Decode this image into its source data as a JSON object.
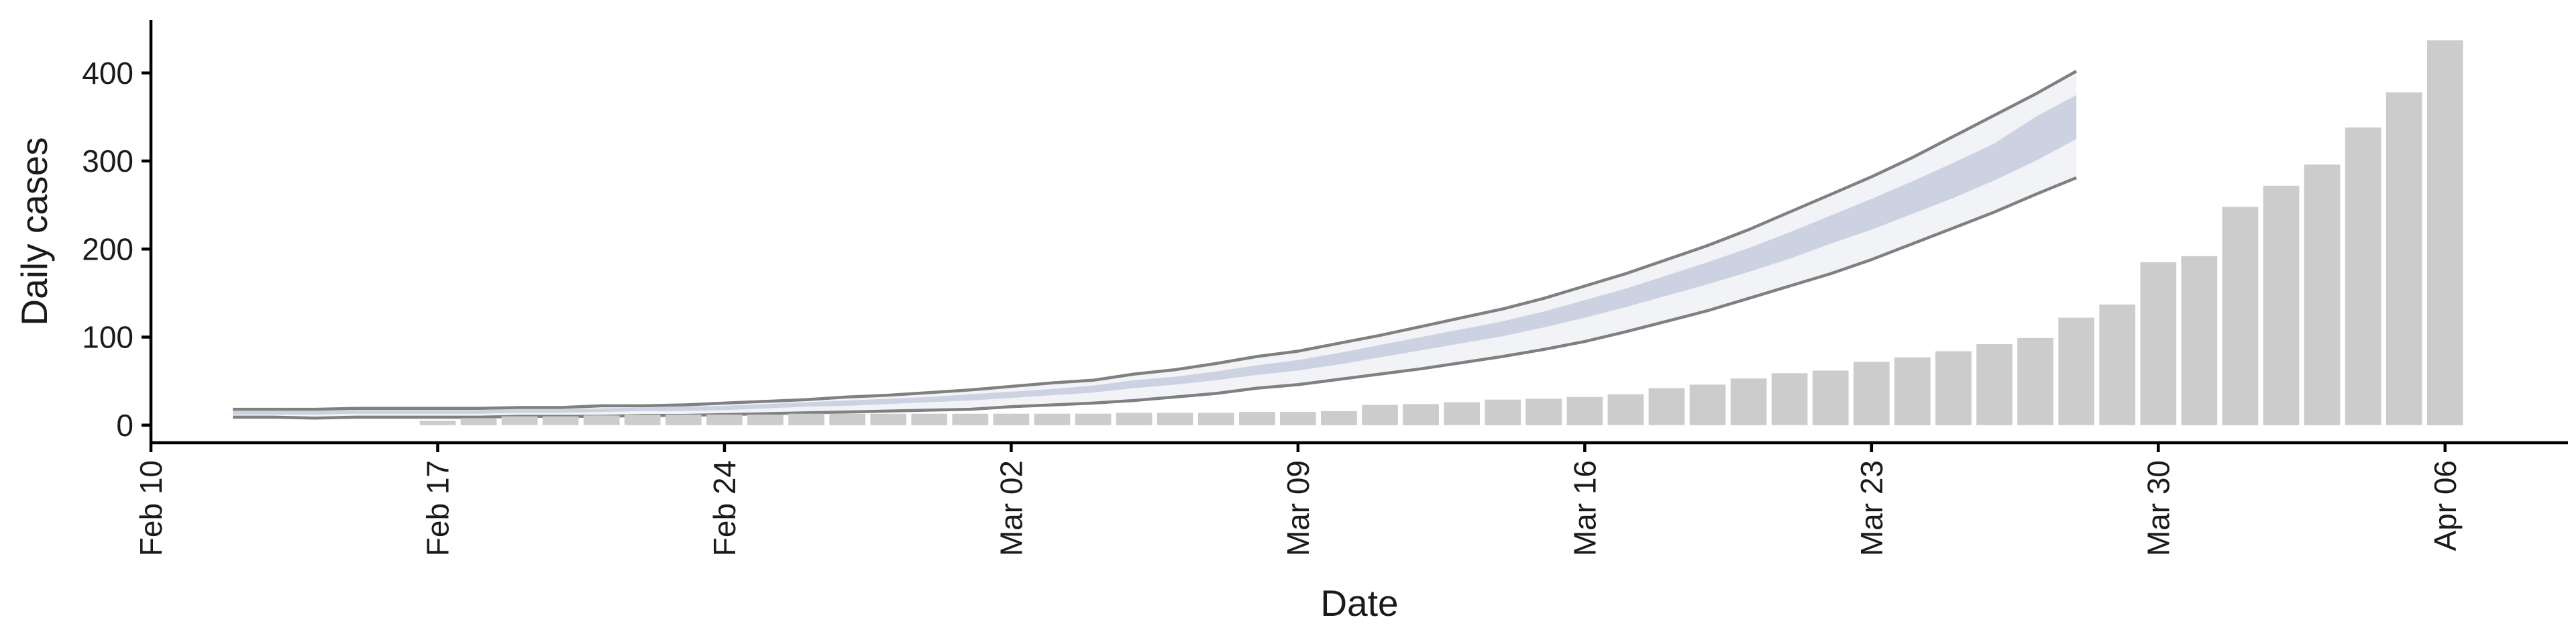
{
  "chart_data": {
    "type": "bar",
    "title": "",
    "xlabel": "Date",
    "ylabel": "Daily cases",
    "x_axis": {
      "type": "date",
      "range": [
        "2020-02-10",
        "2020-04-09"
      ],
      "ticks": [
        {
          "date": "2020-02-10",
          "label": "Feb 10"
        },
        {
          "date": "2020-02-17",
          "label": "Feb 17"
        },
        {
          "date": "2020-02-24",
          "label": "Feb 24"
        },
        {
          "date": "2020-03-02",
          "label": "Mar 02"
        },
        {
          "date": "2020-03-09",
          "label": "Mar 09"
        },
        {
          "date": "2020-03-16",
          "label": "Mar 16"
        },
        {
          "date": "2020-03-23",
          "label": "Mar 23"
        },
        {
          "date": "2020-03-30",
          "label": "Mar 30"
        },
        {
          "date": "2020-04-06",
          "label": "Apr 06"
        }
      ],
      "tick_label_rotation": "vertical"
    },
    "y_axis": {
      "range": [
        -20,
        460
      ],
      "ticks": [
        0,
        100,
        200,
        300,
        400
      ]
    },
    "grid": false,
    "legend": "none",
    "colors": {
      "bars": "#cccccc",
      "band_outer": "#f2f3f7",
      "band_inner": "#cdd2e3",
      "band_edge": "#808080",
      "axis": "#000000"
    },
    "series": [
      {
        "type": "bar",
        "dates": [
          "2020-02-17",
          "2020-02-18",
          "2020-02-19",
          "2020-02-20",
          "2020-02-21",
          "2020-02-22",
          "2020-02-23",
          "2020-02-24",
          "2020-02-25",
          "2020-02-26",
          "2020-02-27",
          "2020-02-28",
          "2020-02-29",
          "2020-03-01",
          "2020-03-02",
          "2020-03-03",
          "2020-03-04",
          "2020-03-05",
          "2020-03-06",
          "2020-03-07",
          "2020-03-08",
          "2020-03-09",
          "2020-03-10",
          "2020-03-11",
          "2020-03-12",
          "2020-03-13",
          "2020-03-14",
          "2020-03-15",
          "2020-03-16",
          "2020-03-17",
          "2020-03-18",
          "2020-03-19",
          "2020-03-20",
          "2020-03-21",
          "2020-03-22",
          "2020-03-23",
          "2020-03-24",
          "2020-03-25",
          "2020-03-26",
          "2020-03-27",
          "2020-03-28",
          "2020-03-29",
          "2020-03-30",
          "2020-03-31",
          "2020-04-01",
          "2020-04-02",
          "2020-04-03",
          "2020-04-04",
          "2020-04-05",
          "2020-04-06"
        ],
        "values": [
          5,
          8,
          10,
          10,
          11,
          12,
          12,
          12,
          12,
          13,
          13,
          13,
          13,
          13,
          13,
          13,
          13,
          14,
          14,
          14,
          15,
          15,
          16,
          23,
          24,
          26,
          29,
          30,
          32,
          35,
          42,
          46,
          53,
          59,
          62,
          72,
          77,
          84,
          92,
          99,
          122,
          137,
          185,
          192,
          248,
          272,
          296,
          338,
          378,
          437
        ]
      },
      {
        "type": "band",
        "dates": [
          "2020-02-12",
          "2020-02-13",
          "2020-02-14",
          "2020-02-15",
          "2020-02-16",
          "2020-02-17",
          "2020-02-18",
          "2020-02-19",
          "2020-02-20",
          "2020-02-21",
          "2020-02-22",
          "2020-02-23",
          "2020-02-24",
          "2020-02-25",
          "2020-02-26",
          "2020-02-27",
          "2020-02-28",
          "2020-02-29",
          "2020-03-01",
          "2020-03-02",
          "2020-03-03",
          "2020-03-04",
          "2020-03-05",
          "2020-03-06",
          "2020-03-07",
          "2020-03-08",
          "2020-03-09",
          "2020-03-10",
          "2020-03-11",
          "2020-03-12",
          "2020-03-13",
          "2020-03-14",
          "2020-03-15",
          "2020-03-16",
          "2020-03-17",
          "2020-03-18",
          "2020-03-19",
          "2020-03-20",
          "2020-03-21",
          "2020-03-22",
          "2020-03-23",
          "2020-03-24",
          "2020-03-25",
          "2020-03-26",
          "2020-03-27",
          "2020-03-28"
        ],
        "upper_outer": [
          18,
          18,
          18,
          19,
          19,
          19,
          19,
          20,
          20,
          22,
          22,
          23,
          25,
          27,
          29,
          32,
          34,
          37,
          40,
          44,
          48,
          51,
          58,
          63,
          70,
          78,
          84,
          93,
          102,
          112,
          122,
          132,
          144,
          158,
          172,
          188,
          204,
          222,
          242,
          262,
          282,
          304,
          328,
          352,
          376,
          402
        ],
        "upper_inner": [
          16,
          16,
          16,
          17,
          17,
          17,
          17,
          18,
          18,
          19,
          20,
          21,
          22,
          24,
          26,
          28,
          30,
          32,
          35,
          38,
          41,
          45,
          51,
          55,
          61,
          68,
          74,
          82,
          91,
          100,
          109,
          118,
          129,
          142,
          155,
          170,
          185,
          201,
          219,
          238,
          257,
          277,
          298,
          320,
          350,
          375
        ],
        "lower_inner": [
          12,
          12,
          12,
          13,
          13,
          13,
          13,
          14,
          14,
          15,
          16,
          16,
          17,
          19,
          21,
          22,
          24,
          26,
          28,
          31,
          34,
          37,
          42,
          46,
          51,
          57,
          62,
          69,
          77,
          85,
          93,
          101,
          111,
          122,
          134,
          147,
          160,
          174,
          189,
          206,
          222,
          240,
          258,
          278,
          300,
          325
        ],
        "lower_outer": [
          9,
          9,
          8,
          9,
          9,
          9,
          9,
          10,
          10,
          10,
          11,
          11,
          12,
          13,
          14,
          15,
          16,
          17,
          18,
          21,
          23,
          25,
          28,
          32,
          36,
          42,
          46,
          52,
          58,
          64,
          71,
          78,
          86,
          95,
          106,
          118,
          130,
          144,
          158,
          172,
          188,
          206,
          224,
          242,
          262,
          281
        ]
      }
    ]
  }
}
